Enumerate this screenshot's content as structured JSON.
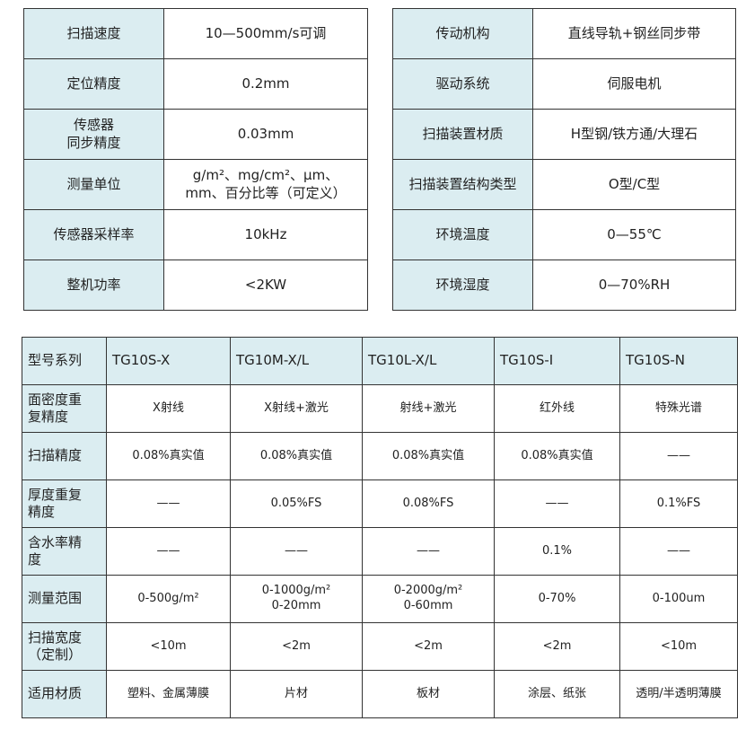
{
  "spec_left": [
    {
      "label": "扫描速度",
      "value": "10—500mm/s可调"
    },
    {
      "label": "定位精度",
      "value": "0.2mm"
    },
    {
      "label": "传感器\n同步精度",
      "value": "0.03mm"
    },
    {
      "label": "测量单位",
      "value": "g/m²、mg/cm²、μm、\nmm、百分比等（可定义）"
    },
    {
      "label": "传感器采样率",
      "value": "10kHz"
    },
    {
      "label": "整机功率",
      "value": "<2KW"
    }
  ],
  "spec_right": [
    {
      "label": "传动机构",
      "value": "直线导轨+钢丝同步带"
    },
    {
      "label": "驱动系统",
      "value": "伺服电机"
    },
    {
      "label": "扫描装置材质",
      "value": "H型钢/铁方通/大理石"
    },
    {
      "label": "扫描装置结构类型",
      "value": "O型/C型"
    },
    {
      "label": "环境温度",
      "value": "0—55℃"
    },
    {
      "label": "环境湿度",
      "value": "0—70%RH"
    }
  ],
  "models": {
    "header": [
      "型号系列",
      "TG10S-X",
      "TG10M-X/L",
      "TG10L-X/L",
      "TG10S-I",
      "TG10S-N"
    ],
    "rows": [
      [
        "面密度重\n复精度",
        "X射线",
        "X射线+激光",
        "射线+激光",
        "红外线",
        "特殊光谱"
      ],
      [
        "扫描精度",
        "0.08%真实值",
        "0.08%真实值",
        "0.08%真实值",
        "0.08%真实值",
        "——"
      ],
      [
        "厚度重复\n精度",
        "——",
        "0.05%FS",
        "0.08%FS",
        "——",
        "0.1%FS"
      ],
      [
        "含水率精\n度",
        "——",
        "——",
        "——",
        "0.1%",
        "——"
      ],
      [
        "测量范围",
        "0-500g/m²",
        "0-1000g/m²\n0-20mm",
        "0-2000g/m²\n0-60mm",
        "0-70%",
        "0-100um"
      ],
      [
        "扫描宽度\n（定制）",
        "<10m",
        "<2m",
        "<2m",
        "<2m",
        "<10m"
      ],
      [
        "适用材质",
        "塑料、金属薄膜",
        "片材",
        "板材",
        "涂层、纸张",
        "透明/半透明薄膜"
      ]
    ]
  },
  "colors": {
    "header_bg": "#dbedf1",
    "border": "#333333"
  }
}
